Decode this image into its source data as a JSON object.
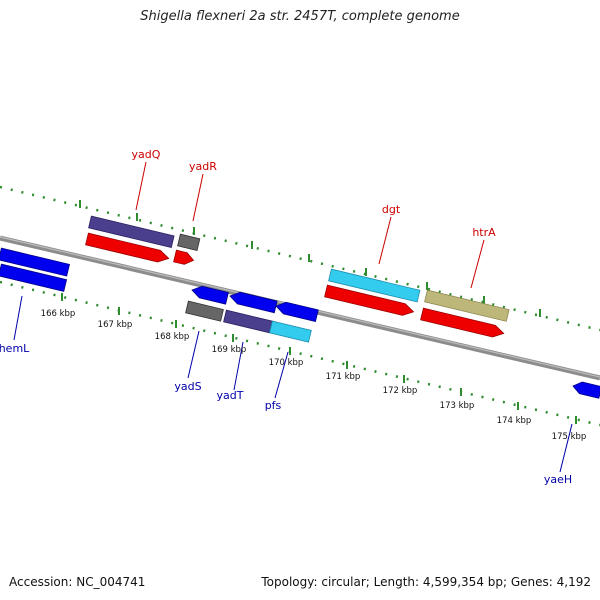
{
  "title": "Shigella flexneri 2a str. 2457T, complete genome",
  "footer": {
    "accession": "Accession: NC_004741",
    "summary": "Topology: circular; Length: 4,599,354 bp; Genes: 4,192"
  },
  "colors": {
    "backbone": "#8c8c8c",
    "tick": "#2e8b2e",
    "forward_label": "#cc0000",
    "reverse_label": "#0000aa",
    "cds": "#ee0000",
    "gene_blue": "#0000ee",
    "purple": "#4a3f8c",
    "cyan": "#33ccee",
    "gray": "#666666",
    "khaki": "#bdb77a"
  },
  "forward_labels": [
    "yadQ",
    "yadR",
    "dgt",
    "htrA"
  ],
  "reverse_labels": [
    "hemL",
    "yadS",
    "yadT",
    "pfs",
    "yaeH"
  ],
  "kbp_labels": [
    "166 kbp",
    "167 kbp",
    "168 kbp",
    "169 kbp",
    "170 kbp",
    "171 kbp",
    "172 kbp",
    "173 kbp",
    "174 kbp",
    "175 kbp"
  ]
}
